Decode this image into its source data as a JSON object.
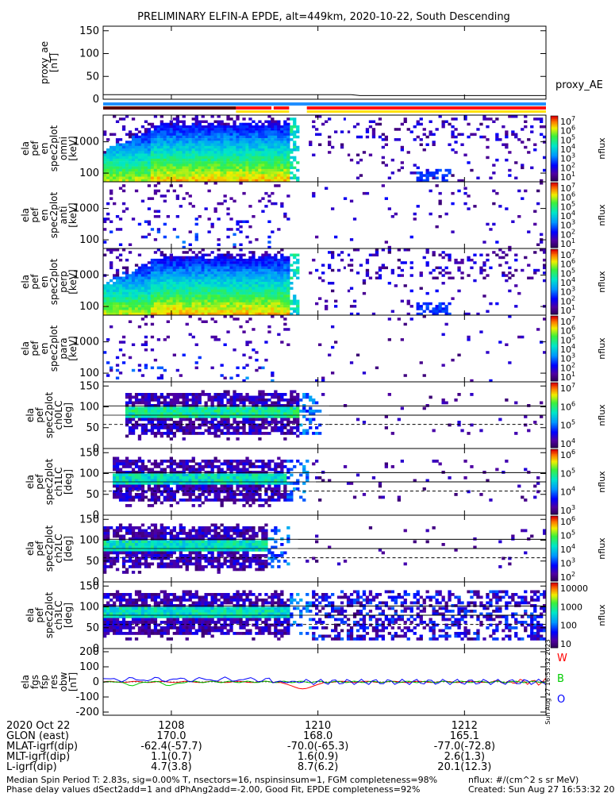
{
  "title": "PRELIMINARY ELFIN-A EPDE, alt=449km, 2020-10-22, South Descending",
  "colors": {
    "bar_blue": "#1f8fff",
    "bar_red": "#ff1010",
    "bar_yellow": "#ffe000",
    "bar_dark": "#5a0000",
    "line_W": "#ff0000",
    "line_B": "#00cc00",
    "line_O": "#0000ff"
  },
  "panels": [
    {
      "ylabel": [
        "proxy_ae",
        "[nT]"
      ],
      "yticks": [
        "150",
        "100",
        "50",
        "0"
      ],
      "right_label": "proxy_AE"
    },
    {
      "ylabel": [
        "ela",
        "pef",
        "en",
        "spec2plot",
        "omni",
        "[keV]"
      ],
      "yticks": [
        "1000",
        "100"
      ],
      "cb_ticks": [
        "10^7",
        "10^6",
        "10^5",
        "10^4",
        "10^3",
        "10^2",
        "10^1"
      ],
      "cb_label": "nflux"
    },
    {
      "ylabel": [
        "ela",
        "pef",
        "en",
        "spec2plot",
        "anti",
        "[keV]"
      ],
      "yticks": [
        "1000",
        "100"
      ],
      "cb_ticks": [
        "10^7",
        "10^6",
        "10^5",
        "10^4",
        "10^3",
        "10^2",
        "10^1"
      ],
      "cb_label": "nflux"
    },
    {
      "ylabel": [
        "ela",
        "pef",
        "en",
        "spec2plot",
        "perp",
        "[keV]"
      ],
      "yticks": [
        "1000",
        "100"
      ],
      "cb_ticks": [
        "10^7",
        "10^6",
        "10^5",
        "10^4",
        "10^3",
        "10^2",
        "10^1"
      ],
      "cb_label": "nflux"
    },
    {
      "ylabel": [
        "ela",
        "pef",
        "en",
        "spec2plot",
        "para",
        "[keV]"
      ],
      "yticks": [
        "1000",
        "100"
      ],
      "cb_ticks": [
        "10^7",
        "10^6",
        "10^5",
        "10^4",
        "10^3",
        "10^2",
        "10^1"
      ],
      "cb_label": "nflux"
    },
    {
      "ylabel": [
        "ela",
        "pef",
        "spec2plot",
        "ch0LC",
        "[deg]"
      ],
      "yticks": [
        "150",
        "100",
        "50",
        "0"
      ],
      "cb_ticks": [
        "10^7",
        "10^6",
        "10^5",
        "10^4"
      ],
      "cb_label": "nflux"
    },
    {
      "ylabel": [
        "ela",
        "pef",
        "spec2plot",
        "ch1LC",
        "[deg]"
      ],
      "yticks": [
        "150",
        "100",
        "50",
        "0"
      ],
      "cb_ticks": [
        "10^6",
        "10^5",
        "10^4",
        "10^3"
      ],
      "cb_label": "nflux"
    },
    {
      "ylabel": [
        "ela",
        "pef",
        "spec2plot",
        "ch2LC",
        "[deg]"
      ],
      "yticks": [
        "150",
        "100",
        "50",
        "0"
      ],
      "cb_ticks": [
        "10^6",
        "10^5",
        "10^4",
        "10^3",
        "10^2"
      ],
      "cb_label": "nflux"
    },
    {
      "ylabel": [
        "ela",
        "pef",
        "spec2plot",
        "ch3LC",
        "[deg]"
      ],
      "yticks": [
        "150",
        "100",
        "50",
        "0"
      ],
      "cb_ticks": [
        "10000",
        "1000",
        "100",
        "10"
      ],
      "cb_label": "nflux"
    },
    {
      "ylabel": [
        "ela",
        "fgs",
        "fsp",
        "res",
        "obw",
        "[nT]"
      ],
      "yticks": [
        "200",
        "100",
        "0",
        "-100",
        "-200"
      ],
      "legend": [
        "W",
        "B",
        "O"
      ]
    }
  ],
  "time_rows": [
    [
      "2020 Oct 22",
      "1208",
      "1210",
      "1212"
    ],
    [
      "GLON (east)",
      "170.0",
      "168.0",
      "165.1"
    ],
    [
      "MLAT-igrf(dip)",
      "-62.4(-57.7)",
      "-70.0(-65.3)",
      "-77.0(-72.8)"
    ],
    [
      "MLT-igrf(dip)",
      "1.1(0.7)",
      "1.6(0.9)",
      "2.6(1.3)"
    ],
    [
      "L-igrf(dip)",
      "4.7(3.8)",
      "8.7(6.2)",
      "20.1(12.3)"
    ]
  ],
  "footer": {
    "line1": "Median Spin Period T: 2.83s, sig=0.00% T, nsectors=16, nspinsinsum=1, FGM completeness=98%",
    "line2": "Phase delay values dSect2add=1 and dPhAng2add=-2.00, Good Fit, EPDE completeness=92%",
    "units": "nflux: #/(cm^2 s sr MeV)",
    "created": "Created: Sun Aug 27 16:53:32 2023",
    "side_stamp": "Sun Aug 27 16:53:32 2023"
  },
  "chart_data": {
    "type": "heatmap",
    "x_ticks": [
      "1208",
      "1210",
      "1212"
    ],
    "proxy_ae": {
      "ylim": [
        0,
        150
      ],
      "values": [
        [
          0,
          10
        ],
        [
          0.56,
          10
        ],
        [
          0.58,
          8
        ],
        [
          1,
          8
        ]
      ]
    },
    "fgs_residuals_ylim": [
      -200,
      200
    ],
    "loss_cone_lines_deg": [
      115,
      90,
      65
    ]
  }
}
